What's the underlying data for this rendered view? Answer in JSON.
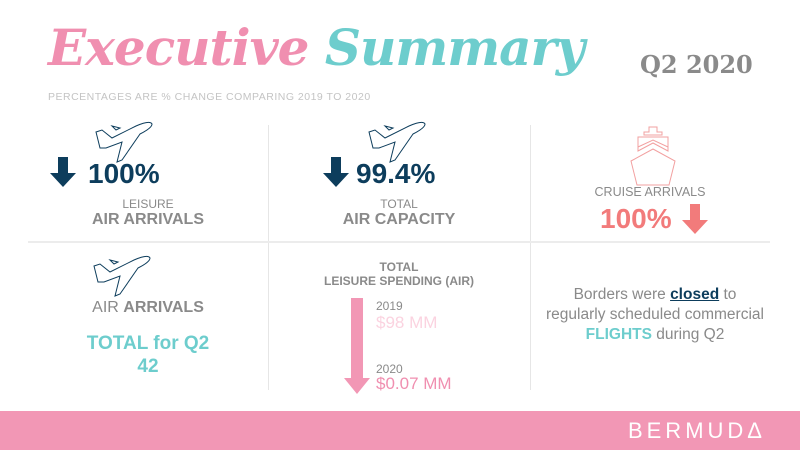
{
  "header": {
    "title_part1": "Executive",
    "title_part2": "Summary",
    "period": "Q2 2020",
    "subtitle": "PERCENTAGES ARE % CHANGE COMPARING 2019 TO 2020"
  },
  "cards": {
    "leisure_air": {
      "value": "100%",
      "line1": "LEISURE",
      "line2": "AIR ARRIVALS"
    },
    "air_capacity": {
      "value": "99.4%",
      "line1": "TOTAL",
      "line2": "AIR CAPACITY"
    },
    "cruise": {
      "label": "CRUISE ARRIVALS",
      "value": "100%"
    },
    "air_total": {
      "label_a": "AIR ",
      "label_b": "ARRIVALS",
      "total_label": "TOTAL for Q2",
      "total_value": "42"
    },
    "spending": {
      "line1": "TOTAL",
      "line2": "LEISURE SPENDING (AIR)",
      "year1": "2019",
      "value1": "$98 MM",
      "year2": "2020",
      "value2": "$0.07 MM"
    },
    "note": {
      "p1": "Borders were ",
      "closed": "closed",
      "p2": " to regularly scheduled commercial ",
      "flights": "FLIGHTS",
      "p3": " during Q2"
    }
  },
  "footer": {
    "brand": "BERMUDΔ"
  },
  "colors": {
    "navy": "#0d3d5c",
    "teal": "#6dcdcd",
    "pink": "#f08fb0",
    "coral": "#f27b7b"
  }
}
